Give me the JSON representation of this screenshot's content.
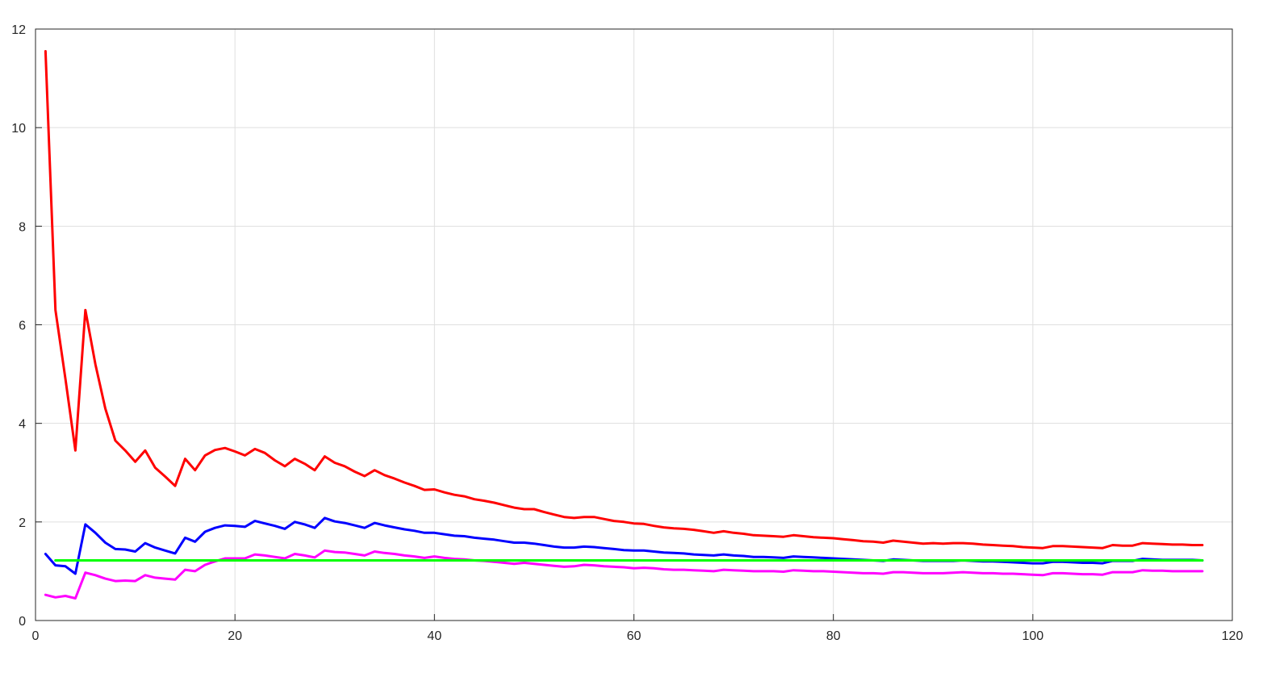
{
  "chart_data": {
    "type": "line",
    "title": "",
    "xlabel": "",
    "ylabel": "",
    "xlim": [
      0,
      120
    ],
    "ylim": [
      0,
      12
    ],
    "xticks": [
      0,
      20,
      40,
      60,
      80,
      100,
      120
    ],
    "yticks": [
      0,
      2,
      4,
      6,
      8,
      10,
      12
    ],
    "grid": true,
    "legend": "none",
    "series": [
      {
        "color": "#ff0000",
        "x": [
          1,
          2,
          3,
          4,
          5,
          6,
          7,
          8,
          9,
          10,
          11,
          12,
          13,
          14,
          15,
          16,
          17,
          18,
          19,
          20,
          21,
          22,
          23,
          24,
          25,
          26,
          27,
          28,
          29,
          30,
          31,
          32,
          33,
          34,
          35,
          36,
          37,
          38,
          39,
          40,
          41,
          42,
          43,
          44,
          45,
          46,
          47,
          48,
          49,
          50,
          51,
          52,
          53,
          54,
          55,
          56,
          57,
          58,
          59,
          60,
          61,
          62,
          63,
          64,
          65,
          66,
          67,
          68,
          69,
          70,
          71,
          72,
          73,
          74,
          75,
          76,
          77,
          78,
          79,
          80,
          81,
          82,
          83,
          84,
          85,
          86,
          87,
          88,
          89,
          90,
          91,
          92,
          93,
          94,
          95,
          96,
          97,
          98,
          99,
          100,
          101,
          102,
          103,
          104,
          105,
          106,
          107,
          108,
          109,
          110,
          111,
          112,
          113,
          114,
          115,
          116,
          117
        ],
        "y": [
          11.55,
          6.3,
          4.9,
          3.45,
          6.3,
          5.2,
          4.3,
          3.65,
          3.45,
          3.22,
          3.45,
          3.1,
          2.92,
          2.73,
          3.28,
          3.05,
          3.35,
          3.46,
          3.5,
          3.43,
          3.35,
          3.48,
          3.4,
          3.25,
          3.13,
          3.28,
          3.18,
          3.05,
          3.33,
          3.2,
          3.13,
          3.02,
          2.93,
          3.05,
          2.95,
          2.88,
          2.8,
          2.73,
          2.65,
          2.66,
          2.6,
          2.55,
          2.52,
          2.46,
          2.43,
          2.39,
          2.34,
          2.29,
          2.26,
          2.26,
          2.2,
          2.15,
          2.1,
          2.08,
          2.1,
          2.1,
          2.06,
          2.02,
          2.0,
          1.97,
          1.96,
          1.92,
          1.89,
          1.87,
          1.86,
          1.84,
          1.81,
          1.78,
          1.81,
          1.78,
          1.76,
          1.73,
          1.72,
          1.71,
          1.7,
          1.73,
          1.71,
          1.69,
          1.68,
          1.67,
          1.65,
          1.63,
          1.61,
          1.6,
          1.58,
          1.62,
          1.6,
          1.58,
          1.56,
          1.57,
          1.56,
          1.57,
          1.57,
          1.56,
          1.54,
          1.53,
          1.52,
          1.51,
          1.49,
          1.48,
          1.47,
          1.51,
          1.51,
          1.5,
          1.49,
          1.48,
          1.47,
          1.53,
          1.52,
          1.52,
          1.57,
          1.56,
          1.55,
          1.54,
          1.54,
          1.53,
          1.53
        ]
      },
      {
        "color": "#0000ff",
        "x": [
          1,
          2,
          3,
          4,
          5,
          6,
          7,
          8,
          9,
          10,
          11,
          12,
          13,
          14,
          15,
          16,
          17,
          18,
          19,
          20,
          21,
          22,
          23,
          24,
          25,
          26,
          27,
          28,
          29,
          30,
          31,
          32,
          33,
          34,
          35,
          36,
          37,
          38,
          39,
          40,
          41,
          42,
          43,
          44,
          45,
          46,
          47,
          48,
          49,
          50,
          51,
          52,
          53,
          54,
          55,
          56,
          57,
          58,
          59,
          60,
          61,
          62,
          63,
          64,
          65,
          66,
          67,
          68,
          69,
          70,
          71,
          72,
          73,
          74,
          75,
          76,
          77,
          78,
          79,
          80,
          81,
          82,
          83,
          84,
          85,
          86,
          87,
          88,
          89,
          90,
          91,
          92,
          93,
          94,
          95,
          96,
          97,
          98,
          99,
          100,
          101,
          102,
          103,
          104,
          105,
          106,
          107,
          108,
          109,
          110,
          111,
          112,
          113,
          114,
          115,
          116,
          117
        ],
        "y": [
          1.35,
          1.12,
          1.1,
          0.95,
          1.95,
          1.78,
          1.58,
          1.45,
          1.44,
          1.4,
          1.57,
          1.48,
          1.42,
          1.36,
          1.68,
          1.6,
          1.8,
          1.88,
          1.93,
          1.92,
          1.9,
          2.02,
          1.97,
          1.92,
          1.86,
          2.0,
          1.95,
          1.88,
          2.08,
          2.01,
          1.98,
          1.93,
          1.88,
          1.98,
          1.93,
          1.89,
          1.85,
          1.82,
          1.78,
          1.78,
          1.75,
          1.72,
          1.71,
          1.68,
          1.66,
          1.64,
          1.61,
          1.58,
          1.58,
          1.56,
          1.53,
          1.5,
          1.48,
          1.48,
          1.5,
          1.49,
          1.47,
          1.45,
          1.43,
          1.42,
          1.42,
          1.4,
          1.38,
          1.37,
          1.36,
          1.34,
          1.33,
          1.32,
          1.34,
          1.32,
          1.31,
          1.29,
          1.29,
          1.28,
          1.27,
          1.3,
          1.29,
          1.28,
          1.27,
          1.26,
          1.25,
          1.24,
          1.23,
          1.22,
          1.21,
          1.24,
          1.23,
          1.22,
          1.21,
          1.21,
          1.21,
          1.21,
          1.22,
          1.21,
          1.2,
          1.2,
          1.19,
          1.18,
          1.17,
          1.16,
          1.16,
          1.19,
          1.19,
          1.18,
          1.17,
          1.17,
          1.16,
          1.21,
          1.21,
          1.21,
          1.25,
          1.24,
          1.23,
          1.23,
          1.23,
          1.23,
          1.22
        ]
      },
      {
        "color": "#ff00ff",
        "x": [
          1,
          2,
          3,
          4,
          5,
          6,
          7,
          8,
          9,
          10,
          11,
          12,
          13,
          14,
          15,
          16,
          17,
          18,
          19,
          20,
          21,
          22,
          23,
          24,
          25,
          26,
          27,
          28,
          29,
          30,
          31,
          32,
          33,
          34,
          35,
          36,
          37,
          38,
          39,
          40,
          41,
          42,
          43,
          44,
          45,
          46,
          47,
          48,
          49,
          50,
          51,
          52,
          53,
          54,
          55,
          56,
          57,
          58,
          59,
          60,
          61,
          62,
          63,
          64,
          65,
          66,
          67,
          68,
          69,
          70,
          71,
          72,
          73,
          74,
          75,
          76,
          77,
          78,
          79,
          80,
          81,
          82,
          83,
          84,
          85,
          86,
          87,
          88,
          89,
          90,
          91,
          92,
          93,
          94,
          95,
          96,
          97,
          98,
          99,
          100,
          101,
          102,
          103,
          104,
          105,
          106,
          107,
          108,
          109,
          110,
          111,
          112,
          113,
          114,
          115,
          116,
          117
        ],
        "y": [
          0.52,
          0.47,
          0.5,
          0.45,
          0.97,
          0.92,
          0.85,
          0.8,
          0.81,
          0.8,
          0.92,
          0.87,
          0.85,
          0.83,
          1.03,
          1.0,
          1.13,
          1.2,
          1.26,
          1.26,
          1.26,
          1.34,
          1.32,
          1.29,
          1.26,
          1.35,
          1.32,
          1.28,
          1.42,
          1.39,
          1.38,
          1.35,
          1.32,
          1.4,
          1.37,
          1.35,
          1.32,
          1.3,
          1.27,
          1.3,
          1.27,
          1.25,
          1.24,
          1.22,
          1.21,
          1.19,
          1.17,
          1.15,
          1.17,
          1.15,
          1.13,
          1.11,
          1.09,
          1.1,
          1.13,
          1.12,
          1.1,
          1.09,
          1.08,
          1.06,
          1.07,
          1.06,
          1.04,
          1.03,
          1.03,
          1.02,
          1.01,
          1.0,
          1.03,
          1.02,
          1.01,
          1.0,
          1.0,
          1.0,
          0.99,
          1.02,
          1.01,
          1.0,
          1.0,
          0.99,
          0.98,
          0.97,
          0.96,
          0.96,
          0.95,
          0.98,
          0.98,
          0.97,
          0.96,
          0.96,
          0.96,
          0.97,
          0.98,
          0.97,
          0.96,
          0.96,
          0.95,
          0.95,
          0.94,
          0.93,
          0.92,
          0.96,
          0.96,
          0.95,
          0.94,
          0.94,
          0.93,
          0.98,
          0.98,
          0.98,
          1.02,
          1.01,
          1.01,
          1.0,
          1.0,
          1.0,
          1.0
        ]
      },
      {
        "color": "#00ff00",
        "x": [
          2,
          117
        ],
        "y": [
          1.22,
          1.22
        ]
      }
    ]
  }
}
